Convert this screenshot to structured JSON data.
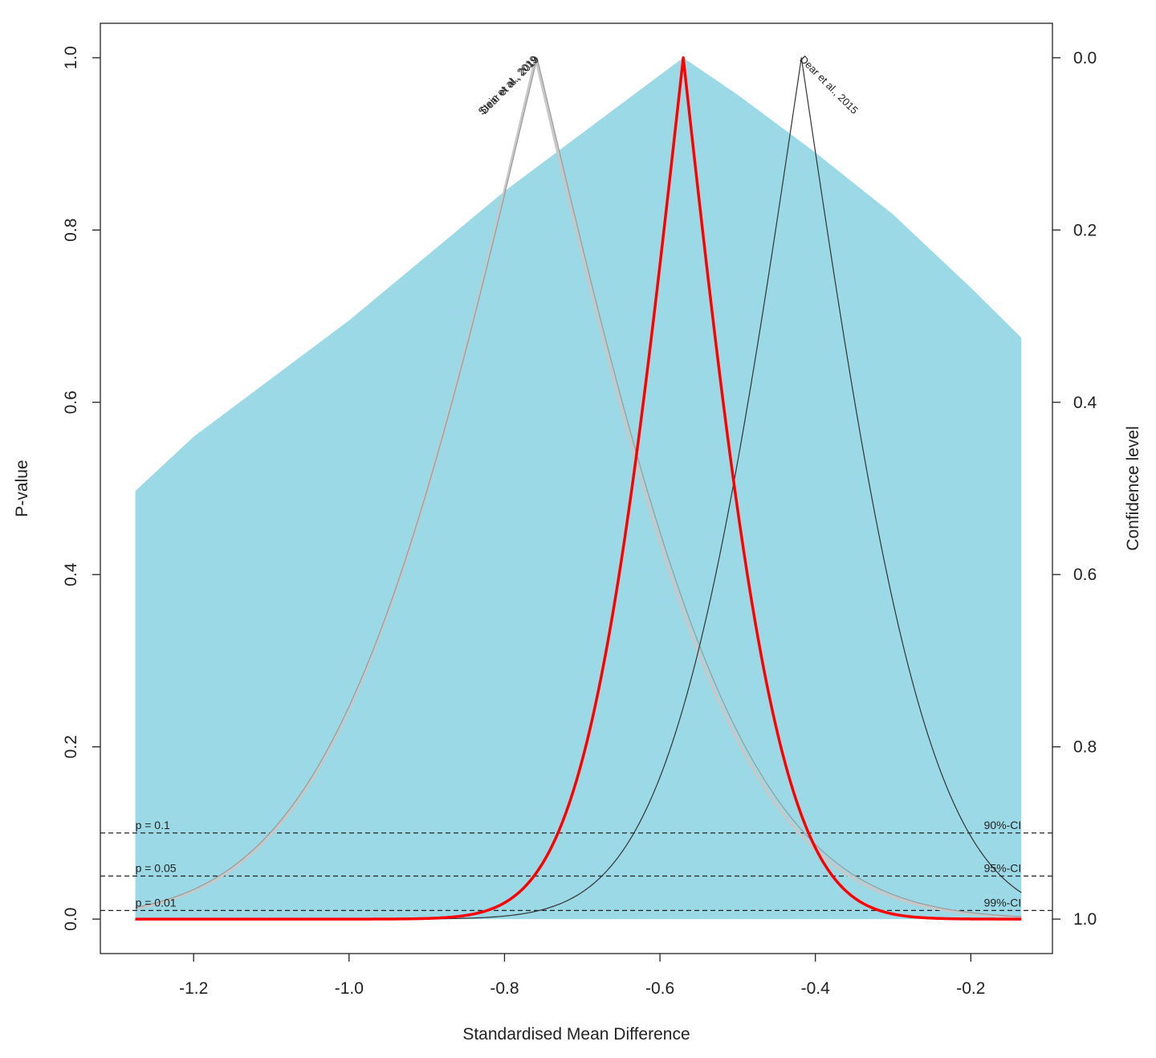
{
  "chart_data": {
    "type": "line",
    "title": "",
    "xlabel": "Standardised Mean Difference",
    "ylabel": "P-value",
    "y2label": "Confidence level",
    "xlim": [
      -1.32,
      -0.095
    ],
    "ylim": [
      -0.04,
      1.04
    ],
    "xticks": [
      -1.2,
      -1.0,
      -0.8,
      -0.6,
      -0.4,
      -0.2
    ],
    "xtick_labels": [
      "-1.2",
      "-1.0",
      "-0.8",
      "-0.6",
      "-0.4",
      "-0.2"
    ],
    "yticks": [
      0.0,
      0.2,
      0.4,
      0.6,
      0.8,
      1.0
    ],
    "ytick_labels": [
      "0.0",
      "0.2",
      "0.4",
      "0.6",
      "0.8",
      "1.0"
    ],
    "y2ticks": [
      0.0,
      0.2,
      0.4,
      0.6,
      0.8,
      1.0
    ],
    "y2tick_labels": [
      "1.0",
      "0.8",
      "0.6",
      "0.4",
      "0.2",
      "0.0"
    ],
    "x_range_plotted": [
      -1.275,
      -0.135
    ],
    "shaded_region": {
      "color": "#9BD9E6",
      "x": [
        -1.275,
        -1.2,
        -1.0,
        -0.8,
        -0.6,
        -0.57,
        -0.5,
        -0.4,
        -0.3,
        -0.2,
        -0.135
      ],
      "y": [
        0.497,
        0.56,
        0.695,
        0.845,
        0.98,
        1.0,
        0.957,
        0.89,
        0.818,
        0.733,
        0.675
      ]
    },
    "reference_lines": [
      {
        "p": 0.1,
        "left_label": "p = 0.1",
        "right_label": "90%-CI"
      },
      {
        "p": 0.05,
        "left_label": "p = 0.05",
        "right_label": "95%-CI"
      },
      {
        "p": 0.01,
        "left_label": "p = 0.01",
        "right_label": "99%-CI"
      }
    ],
    "series": [
      {
        "kind": "study",
        "label": "Stein et al., 2019",
        "peak": -0.76,
        "sd": 0.206,
        "color": "#c8c8c8",
        "width": 3.2
      },
      {
        "kind": "study",
        "label": "Dear et al., 2019",
        "peak": -0.758,
        "sd": 0.209,
        "color": "#9a9a9a",
        "width": 1.2
      },
      {
        "kind": "study",
        "label": "Dear et al., 2015",
        "peak": -0.418,
        "sd": 0.131,
        "color": "#333333",
        "width": 1.2
      },
      {
        "kind": "pooled",
        "label": "",
        "peak": -0.57,
        "sd": 0.098,
        "color": "#ff0000",
        "width": 3.5
      }
    ]
  }
}
